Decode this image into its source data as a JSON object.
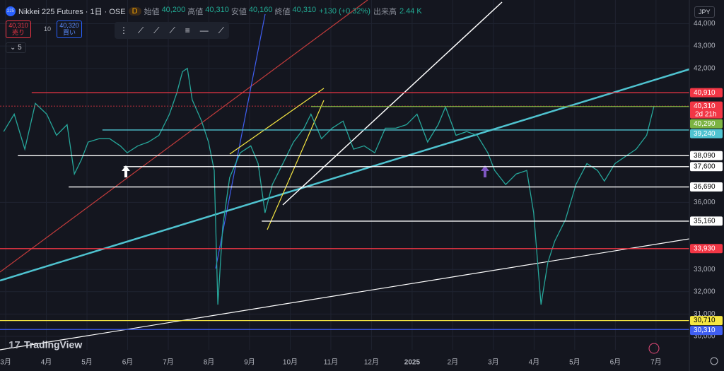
{
  "header": {
    "symbol": "Nikkei 225 Futures · 1日 · OSE",
    "badge": "D",
    "ohlc": [
      {
        "label": "始値",
        "value": "40,200"
      },
      {
        "label": "高値",
        "value": "40,310"
      },
      {
        "label": "安値",
        "value": "40,160"
      },
      {
        "label": "終値",
        "value": "40,310"
      }
    ],
    "change": "+130 (+0.32%)",
    "volume_label": "出来高",
    "volume": "2.44 K"
  },
  "trade": {
    "sell_price": "40,310",
    "sell": "売り",
    "spread": "10",
    "buy_price": "40,320",
    "buy": "買い"
  },
  "indicator_count": "5",
  "currency": "JPY",
  "logo": "TradingView",
  "chart_data": {
    "type": "line",
    "x": [
      -0.05,
      0.21,
      0.47,
      0.73,
      1.01,
      1.25,
      1.51,
      1.69,
      1.86,
      2.03,
      2.3,
      2.56,
      2.82,
      2.99,
      3.25,
      3.51,
      3.77,
      4.03,
      4.21,
      4.35,
      4.47,
      4.59,
      4.82,
      4.99,
      5.13,
      5.22,
      5.34,
      5.51,
      5.77,
      6.03,
      6.21,
      6.38,
      6.56,
      6.82,
      7.08,
      7.34,
      7.51,
      7.77,
      8.03,
      8.3,
      8.56,
      8.82,
      9.08,
      9.34,
      9.6,
      9.86,
      10.12,
      10.38,
      10.64,
      10.82,
      11.08,
      11.34,
      11.6,
      11.86,
      12.03,
      12.3,
      12.56,
      12.82,
      12.99,
      13.17,
      13.34,
      13.51,
      13.77,
      14.03,
      14.3,
      14.56,
      14.73,
      14.99,
      15.25,
      15.51,
      15.77,
      15.95
    ],
    "series": [
      {
        "color": "#26a69a",
        "values": [
          39170,
          39950,
          38380,
          40430,
          39950,
          39000,
          39480,
          37270,
          37900,
          38700,
          38850,
          38850,
          38530,
          38220,
          38530,
          38700,
          39000,
          39950,
          40900,
          41850,
          42000,
          40590,
          39640,
          38700,
          37430,
          31420,
          34900,
          37110,
          38220,
          38530,
          37740,
          35530,
          36800,
          37740,
          38700,
          39320,
          39950,
          38850,
          39320,
          39640,
          38380,
          38530,
          38220,
          39320,
          39320,
          39480,
          39950,
          38700,
          39480,
          40270,
          39000,
          39170,
          39000,
          38220,
          37430,
          36800,
          37270,
          37430,
          35530,
          31420,
          33320,
          34270,
          35220,
          36800,
          37740,
          37430,
          36950,
          37740,
          38060,
          38380,
          39000,
          40310
        ]
      }
    ],
    "xlim": [
      -0.14,
      16.82
    ],
    "xticks": [
      {
        "value": 0,
        "label": "3月"
      },
      {
        "value": 1,
        "label": "4月"
      },
      {
        "value": 2,
        "label": "5月"
      },
      {
        "value": 3,
        "label": "6月"
      },
      {
        "value": 4,
        "label": "7月"
      },
      {
        "value": 5,
        "label": "8月"
      },
      {
        "value": 6,
        "label": "9月"
      },
      {
        "value": 7,
        "label": "10月"
      },
      {
        "value": 8,
        "label": "11月"
      },
      {
        "value": 9,
        "label": "12月"
      },
      {
        "value": 10,
        "label": "2025"
      },
      {
        "value": 11,
        "label": "2月"
      },
      {
        "value": 12,
        "label": "3月"
      },
      {
        "value": 13,
        "label": "4月"
      },
      {
        "value": 14,
        "label": "5月"
      },
      {
        "value": 15,
        "label": "6月"
      },
      {
        "value": 16,
        "label": "7月"
      }
    ],
    "ylim": [
      29400,
      44300
    ],
    "yticks": [
      {
        "value": 44000,
        "label": "44,000"
      },
      {
        "value": 43000,
        "label": "43,000"
      },
      {
        "value": 42000,
        "label": "42,000"
      },
      {
        "value": 36000,
        "label": "36,000"
      },
      {
        "value": 33000,
        "label": "33,000"
      },
      {
        "value": 32000,
        "label": "32,000"
      },
      {
        "value": 31000,
        "label": "31,000"
      },
      {
        "value": 30000,
        "label": "30,000"
      }
    ],
    "grid": true,
    "levels": [
      {
        "value": 40910,
        "label": "40,910",
        "color": "#f23645",
        "from": 0.64
      },
      {
        "value": 40310,
        "label": "40,310",
        "color": "#f23645",
        "from": -0.14
      },
      {
        "value": 40290,
        "label": "40,290",
        "color": "#7cb342",
        "from": 7.51
      },
      {
        "value": 39240,
        "label": "39,240",
        "color": "#4fc3d0",
        "from": 2.38
      },
      {
        "value": 38090,
        "label": "38,090",
        "color": "#ffffff",
        "from": 0.3
      },
      {
        "value": 37600,
        "label": "37,600",
        "color": "#ffffff",
        "from": 2.9
      },
      {
        "value": 36690,
        "label": "36,690",
        "color": "#ffffff",
        "from": 1.55
      },
      {
        "value": 35160,
        "label": "35,160",
        "color": "#ffffff",
        "from": 6.3
      },
      {
        "value": 33930,
        "label": "33,930",
        "color": "#f23645",
        "from": -0.14
      },
      {
        "value": 30710,
        "label": "30,710",
        "color": "#f5e642",
        "from": -0.14
      },
      {
        "value": 30310,
        "label": "30,310",
        "color": "#3f5ef0",
        "from": -0.14
      }
    ],
    "countdown": "2d 21h"
  }
}
